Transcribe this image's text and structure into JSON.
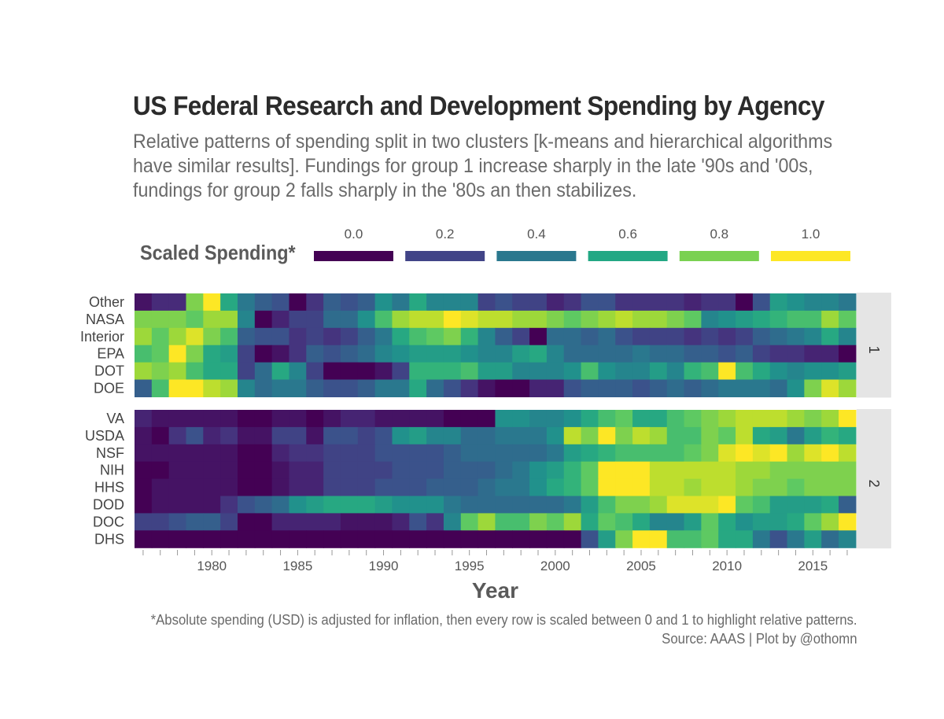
{
  "title": "US Federal Research and Development Spending by Agency",
  "subtitle": [
    "Relative patterns of spending split in two clusters [k-means and hierarchical algorithms",
    "have similar results]. Fundings for group 1 increase sharply in the late '90s and '00s,",
    "fundings for group 2 falls sharply in the '80s an then stabilizes."
  ],
  "caption": [
    "*Absolute spending (USD) is adjusted for inflation, then every row is scaled between 0 and 1 to highlight relative patterns.",
    "Source: AAAS | Plot by @othomn"
  ],
  "chart_data": {
    "type": "heatmap",
    "title": "US Federal Research and Development Spending by Agency",
    "xlabel": "Year",
    "x_ticks": [
      1980,
      1985,
      1990,
      1995,
      2000,
      2005,
      2010,
      2015
    ],
    "x": [
      1976,
      1977,
      1978,
      1979,
      1980,
      1981,
      1982,
      1983,
      1984,
      1985,
      1986,
      1987,
      1988,
      1989,
      1990,
      1991,
      1992,
      1993,
      1994,
      1995,
      1996,
      1997,
      1998,
      1999,
      2000,
      2001,
      2002,
      2003,
      2004,
      2005,
      2006,
      2007,
      2008,
      2009,
      2010,
      2011,
      2012,
      2013,
      2014,
      2015,
      2016,
      2017
    ],
    "legend": {
      "title": "Scaled Spending*",
      "ticks": [
        "0.0",
        "0.2",
        "0.4",
        "0.6",
        "0.8",
        "1.0"
      ],
      "colors": [
        "#440154",
        "#414487",
        "#2a788e",
        "#22a884",
        "#7ad151",
        "#fde725"
      ]
    },
    "panels": [
      {
        "strip": "1",
        "rows": [
          {
            "name": "Other",
            "values": [
              0.05,
              0.12,
              0.12,
              0.8,
              1.0,
              0.6,
              0.4,
              0.3,
              0.25,
              0.0,
              0.15,
              0.3,
              0.25,
              0.3,
              0.5,
              0.4,
              0.6,
              0.45,
              0.45,
              0.45,
              0.2,
              0.25,
              0.2,
              0.2,
              0.1,
              0.15,
              0.25,
              0.25,
              0.15,
              0.15,
              0.15,
              0.15,
              0.1,
              0.15,
              0.15,
              0.0,
              0.25,
              0.55,
              0.5,
              0.45,
              0.45,
              0.4
            ]
          },
          {
            "name": "NASA",
            "values": [
              0.8,
              0.8,
              0.8,
              0.75,
              0.85,
              0.85,
              0.45,
              0.0,
              0.1,
              0.2,
              0.2,
              0.35,
              0.35,
              0.5,
              0.7,
              0.85,
              0.9,
              0.9,
              1.0,
              0.95,
              0.9,
              0.9,
              0.85,
              0.85,
              0.8,
              0.75,
              0.8,
              0.85,
              0.9,
              0.85,
              0.85,
              0.8,
              0.75,
              0.45,
              0.5,
              0.55,
              0.6,
              0.65,
              0.7,
              0.7,
              0.85,
              0.75
            ]
          },
          {
            "name": "Interior",
            "values": [
              0.85,
              0.75,
              0.85,
              0.95,
              0.8,
              0.7,
              0.3,
              0.25,
              0.25,
              0.15,
              0.2,
              0.15,
              0.2,
              0.3,
              0.4,
              0.6,
              0.7,
              0.75,
              0.8,
              0.65,
              0.45,
              0.3,
              0.2,
              0.0,
              0.35,
              0.35,
              0.3,
              0.35,
              0.25,
              0.2,
              0.2,
              0.2,
              0.15,
              0.2,
              0.15,
              0.2,
              0.3,
              0.35,
              0.4,
              0.45,
              0.6,
              0.45
            ]
          },
          {
            "name": "EPA",
            "values": [
              0.7,
              0.75,
              1.0,
              0.8,
              0.6,
              0.55,
              0.2,
              0.0,
              0.05,
              0.15,
              0.3,
              0.25,
              0.3,
              0.35,
              0.45,
              0.5,
              0.55,
              0.55,
              0.55,
              0.5,
              0.45,
              0.45,
              0.55,
              0.6,
              0.45,
              0.35,
              0.35,
              0.35,
              0.35,
              0.4,
              0.35,
              0.35,
              0.3,
              0.3,
              0.25,
              0.3,
              0.2,
              0.15,
              0.15,
              0.1,
              0.1,
              0.0
            ]
          },
          {
            "name": "DOT",
            "values": [
              0.85,
              0.8,
              0.85,
              0.7,
              0.6,
              0.6,
              0.2,
              0.35,
              0.6,
              0.45,
              0.2,
              0.0,
              0.0,
              0.0,
              0.05,
              0.2,
              0.65,
              0.65,
              0.65,
              0.7,
              0.55,
              0.55,
              0.45,
              0.45,
              0.45,
              0.5,
              0.7,
              0.5,
              0.45,
              0.45,
              0.55,
              0.45,
              0.65,
              0.7,
              1.0,
              0.7,
              0.6,
              0.5,
              0.45,
              0.5,
              0.5,
              0.55
            ]
          },
          {
            "name": "DOE",
            "values": [
              0.3,
              0.7,
              1.0,
              1.0,
              0.9,
              0.85,
              0.45,
              0.35,
              0.4,
              0.4,
              0.3,
              0.25,
              0.25,
              0.3,
              0.4,
              0.4,
              0.6,
              0.35,
              0.25,
              0.15,
              0.05,
              0.0,
              0.0,
              0.1,
              0.1,
              0.25,
              0.3,
              0.3,
              0.3,
              0.25,
              0.3,
              0.35,
              0.3,
              0.35,
              0.4,
              0.4,
              0.4,
              0.35,
              0.5,
              0.8,
              0.95,
              0.85
            ]
          }
        ]
      },
      {
        "strip": "2",
        "rows": [
          {
            "name": "VA",
            "values": [
              0.1,
              0.05,
              0.05,
              0.05,
              0.05,
              0.05,
              0.0,
              0.0,
              0.05,
              0.05,
              0.0,
              0.05,
              0.1,
              0.1,
              0.05,
              0.05,
              0.05,
              0.05,
              0.0,
              0.0,
              0.0,
              0.5,
              0.5,
              0.45,
              0.45,
              0.5,
              0.6,
              0.7,
              0.75,
              0.6,
              0.6,
              0.7,
              0.75,
              0.8,
              0.85,
              0.9,
              0.9,
              0.9,
              0.85,
              0.8,
              0.85,
              1.0
            ]
          },
          {
            "name": "USDA",
            "values": [
              0.05,
              0.0,
              0.15,
              0.25,
              0.1,
              0.15,
              0.05,
              0.05,
              0.2,
              0.2,
              0.05,
              0.25,
              0.25,
              0.2,
              0.25,
              0.5,
              0.55,
              0.45,
              0.45,
              0.35,
              0.35,
              0.4,
              0.4,
              0.4,
              0.5,
              0.9,
              0.8,
              1.0,
              0.8,
              0.9,
              0.85,
              0.7,
              0.7,
              0.8,
              0.75,
              0.9,
              0.6,
              0.55,
              0.4,
              0.55,
              0.65,
              0.6
            ]
          },
          {
            "name": "NSF",
            "values": [
              0.05,
              0.05,
              0.05,
              0.05,
              0.05,
              0.05,
              0.0,
              0.0,
              0.1,
              0.15,
              0.15,
              0.2,
              0.2,
              0.2,
              0.25,
              0.25,
              0.25,
              0.25,
              0.3,
              0.35,
              0.35,
              0.35,
              0.35,
              0.35,
              0.4,
              0.55,
              0.6,
              0.65,
              0.7,
              0.7,
              0.7,
              0.7,
              0.75,
              0.8,
              0.95,
              1.0,
              0.95,
              1.0,
              0.85,
              0.95,
              1.0,
              0.9
            ]
          },
          {
            "name": "NIH",
            "values": [
              0.0,
              0.0,
              0.05,
              0.05,
              0.05,
              0.05,
              0.0,
              0.0,
              0.05,
              0.1,
              0.1,
              0.2,
              0.2,
              0.2,
              0.2,
              0.25,
              0.25,
              0.25,
              0.3,
              0.3,
              0.3,
              0.35,
              0.4,
              0.5,
              0.55,
              0.65,
              0.75,
              1.0,
              1.0,
              1.0,
              0.9,
              0.9,
              0.9,
              0.9,
              0.9,
              0.85,
              0.85,
              0.8,
              0.8,
              0.8,
              0.8,
              0.8
            ]
          },
          {
            "name": "HHS",
            "values": [
              0.0,
              0.05,
              0.05,
              0.05,
              0.05,
              0.05,
              0.0,
              0.0,
              0.05,
              0.1,
              0.1,
              0.2,
              0.2,
              0.2,
              0.25,
              0.25,
              0.25,
              0.3,
              0.3,
              0.3,
              0.35,
              0.4,
              0.4,
              0.5,
              0.6,
              0.65,
              0.75,
              1.0,
              1.0,
              1.0,
              0.9,
              0.9,
              0.85,
              0.9,
              0.9,
              0.85,
              0.8,
              0.8,
              0.75,
              0.8,
              0.8,
              0.8
            ]
          },
          {
            "name": "DOD",
            "values": [
              0.0,
              0.05,
              0.05,
              0.05,
              0.05,
              0.15,
              0.25,
              0.3,
              0.35,
              0.5,
              0.55,
              0.6,
              0.6,
              0.6,
              0.55,
              0.5,
              0.5,
              0.5,
              0.4,
              0.35,
              0.35,
              0.35,
              0.35,
              0.35,
              0.35,
              0.4,
              0.55,
              0.7,
              0.8,
              0.8,
              0.85,
              0.95,
              0.95,
              0.95,
              1.0,
              0.75,
              0.7,
              0.55,
              0.55,
              0.55,
              0.6,
              0.3
            ]
          },
          {
            "name": "DOC",
            "values": [
              0.2,
              0.2,
              0.25,
              0.3,
              0.3,
              0.2,
              0.0,
              0.0,
              0.1,
              0.1,
              0.1,
              0.1,
              0.05,
              0.05,
              0.05,
              0.1,
              0.25,
              0.15,
              0.45,
              0.75,
              0.85,
              0.7,
              0.7,
              0.8,
              0.75,
              0.85,
              0.6,
              0.75,
              0.7,
              0.6,
              0.45,
              0.45,
              0.55,
              0.75,
              0.6,
              0.5,
              0.55,
              0.55,
              0.6,
              0.75,
              0.85,
              1.0
            ]
          },
          {
            "name": "DHS",
            "values": [
              0.0,
              0.0,
              0.0,
              0.0,
              0.0,
              0.0,
              0.0,
              0.0,
              0.0,
              0.0,
              0.0,
              0.0,
              0.0,
              0.0,
              0.0,
              0.0,
              0.0,
              0.0,
              0.0,
              0.0,
              0.0,
              0.0,
              0.0,
              0.0,
              0.0,
              0.0,
              0.25,
              0.55,
              0.8,
              1.0,
              1.0,
              0.7,
              0.7,
              0.75,
              0.6,
              0.6,
              0.4,
              0.25,
              0.4,
              0.55,
              0.35,
              0.45
            ]
          }
        ]
      }
    ]
  }
}
